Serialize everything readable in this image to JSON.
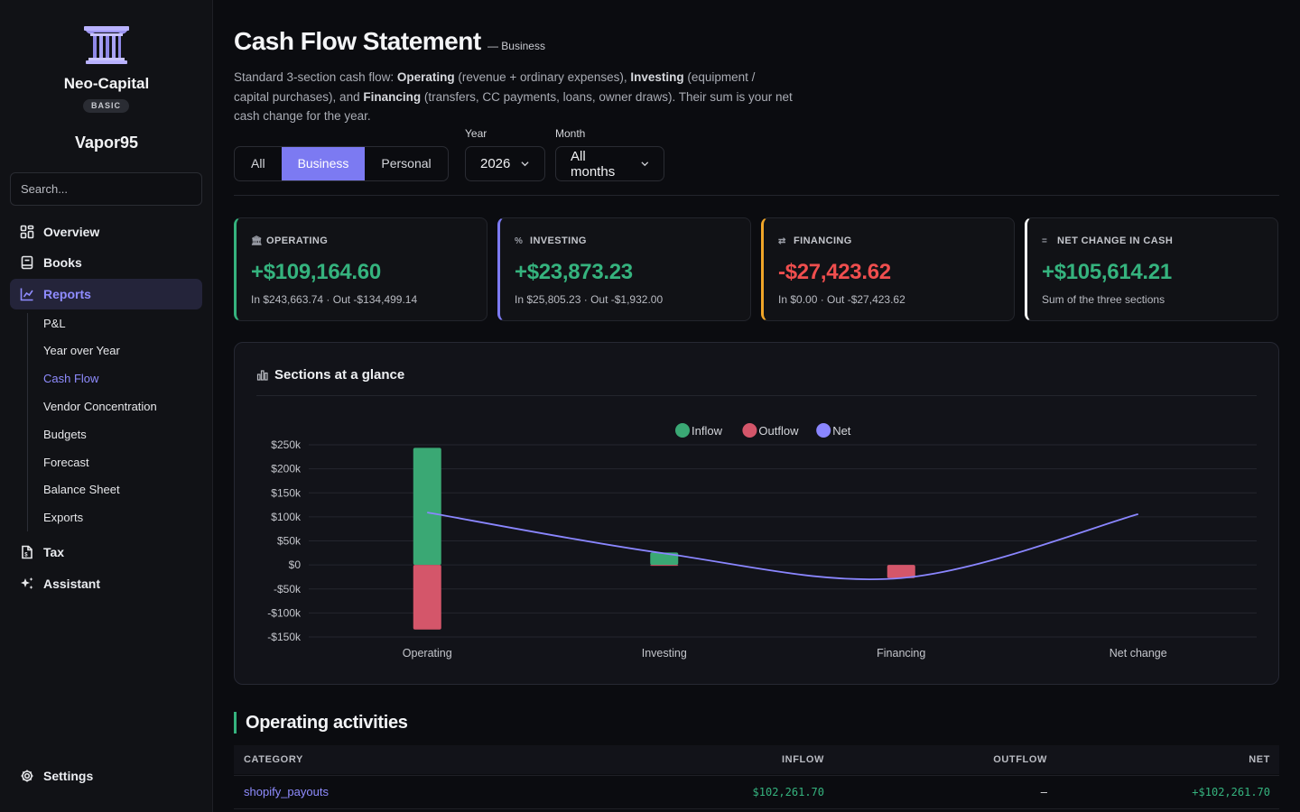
{
  "sidebar": {
    "brand": "Neo-Capital",
    "plan": "BASIC",
    "username": "Vapor95",
    "search_placeholder": "Search...",
    "nav": [
      {
        "label": "Overview",
        "icon": "grid-icon"
      },
      {
        "label": "Books",
        "icon": "book-icon"
      },
      {
        "label": "Reports",
        "icon": "chart-icon"
      },
      {
        "label": "Tax",
        "icon": "document-icon"
      },
      {
        "label": "Assistant",
        "icon": "sparkle-icon"
      }
    ],
    "report_sub": [
      "P&L",
      "Year over Year",
      "Cash Flow",
      "Vendor Concentration",
      "Budgets",
      "Forecast",
      "Balance Sheet",
      "Exports"
    ],
    "settings": "Settings"
  },
  "header": {
    "title": "Cash Flow Statement",
    "subtitle": "— Business",
    "description": {
      "p1": "Standard 3-section cash flow: ",
      "b1": "Operating",
      "p2": " (revenue + ordinary expenses), ",
      "b2": "Investing",
      "p3": " (equipment / capital purchases), and ",
      "b3": "Financing",
      "p4": " (transfers, CC payments, loans, owner draws). Their sum is your net cash change for the year."
    }
  },
  "filters": {
    "segments": [
      "All",
      "Business",
      "Personal"
    ],
    "active_segment": "Business",
    "year_label": "Year",
    "year_value": "2026",
    "month_label": "Month",
    "month_value": "All months"
  },
  "cards": [
    {
      "label": "OPERATING",
      "icon": "bank-icon",
      "amount": "+$109,164.60",
      "foot": "In $243,663.74 · Out -$134,499.14",
      "accent": "#35b37e",
      "amount_color": "#35b37e"
    },
    {
      "label": "INVESTING",
      "icon": "percent-icon",
      "amount": "+$23,873.23",
      "foot": "In $25,805.23 · Out -$1,932.00",
      "accent": "#7c7af2",
      "amount_color": "#35b37e"
    },
    {
      "label": "FINANCING",
      "icon": "transfer-icon",
      "amount": "-$27,423.62",
      "foot": "In $0.00 · Out -$27,423.62",
      "accent": "#f0a528",
      "amount_color": "#ef4e4e"
    },
    {
      "label": "NET CHANGE IN CASH",
      "icon": "equals-icon",
      "amount": "+$105,614.21",
      "foot": "Sum of the three sections",
      "accent": "#ffffff",
      "amount_color": "#35b37e"
    }
  ],
  "panel": {
    "title": "Sections at a glance"
  },
  "chart_data": {
    "type": "bar",
    "categories": [
      "Operating",
      "Investing",
      "Financing",
      "Net change"
    ],
    "series": [
      {
        "name": "Inflow",
        "color": "#3aa874",
        "values": [
          243663.74,
          25805.23,
          0,
          0
        ]
      },
      {
        "name": "Outflow",
        "color": "#d4566a",
        "values": [
          -134499.14,
          -1932.0,
          -27423.62,
          0
        ]
      },
      {
        "name": "Net",
        "color": "#8a86ff",
        "type": "line",
        "values": [
          109164.6,
          23873.23,
          -27423.62,
          105614.21
        ]
      }
    ],
    "yticks": [
      250000,
      200000,
      150000,
      100000,
      50000,
      0,
      -50000,
      -100000,
      -150000
    ],
    "ytick_labels": [
      "$250k",
      "$200k",
      "$150k",
      "$100k",
      "$50k",
      "$0",
      "-$50k",
      "-$100k",
      "-$150k"
    ],
    "ylim": [
      -150000,
      250000
    ],
    "legend": "top-center",
    "grid": true
  },
  "operating": {
    "title": "Operating activities",
    "columns": [
      "CATEGORY",
      "INFLOW",
      "OUTFLOW",
      "NET"
    ],
    "rows": [
      {
        "category": "shopify_payouts",
        "inflow": "$102,261.70",
        "outflow": "–",
        "net": "+$102,261.70"
      }
    ]
  },
  "colors": {
    "accent": "#7c7af2",
    "positive": "#35b37e",
    "negative": "#ef4e4e"
  }
}
